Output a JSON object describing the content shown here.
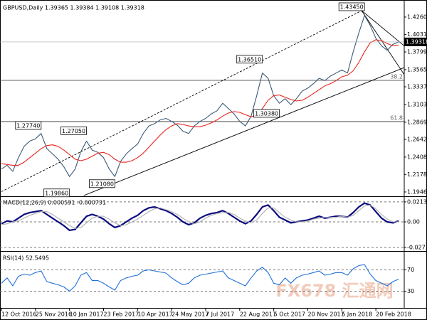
{
  "chart_data": [
    {
      "type": "line",
      "title": "GBPUSD,Daily  1.39365 1.39384 1.39108 1.39318",
      "ylim": [
        1.1899,
        1.4439
      ],
      "yticks": [
        1.42605,
        {
          "value": 1.4031,
          "label": "1.40310"
        },
        {
          "value": 1.3799,
          "label": "1.37990"
        },
        {
          "value": 1.3565,
          "label": "1.35650"
        },
        1.33375,
        1.31035,
        {
          "value": 1.2869,
          "label": "1.28690"
        },
        {
          "value": 1.2642,
          "label": "1.26420"
        },
        {
          "value": 1.2408,
          "label": "1.24080"
        },
        1.21785,
        1.19465
      ],
      "series": [
        {
          "color": "#3b5a78",
          "values": [
            1.225,
            1.23,
            1.222,
            1.24,
            1.255,
            1.262,
            1.265,
            1.272,
            1.252,
            1.245,
            1.238,
            1.228,
            1.215,
            1.225,
            1.248,
            1.262,
            1.25,
            1.247,
            1.24,
            1.225,
            1.215,
            1.235,
            1.245,
            1.252,
            1.258,
            1.272,
            1.282,
            1.285,
            1.29,
            1.292,
            1.288,
            1.283,
            1.275,
            1.272,
            1.282,
            1.288,
            1.292,
            1.298,
            1.302,
            1.312,
            1.305,
            1.298,
            1.288,
            1.282,
            1.295,
            1.322,
            1.352,
            1.345,
            1.322,
            1.312,
            1.318,
            1.31,
            1.318,
            1.328,
            1.332,
            1.338,
            1.345,
            1.342,
            1.348,
            1.352,
            1.356,
            1.352,
            1.38,
            1.405,
            1.428,
            1.415,
            1.398,
            1.388,
            1.382,
            1.39,
            1.393
          ]
        },
        {
          "color": "#e8241c",
          "values": [
            1.232,
            1.231,
            1.23,
            1.23,
            1.234,
            1.24,
            1.246,
            1.252,
            1.256,
            1.257,
            1.255,
            1.25,
            1.244,
            1.238,
            1.236,
            1.238,
            1.242,
            1.246,
            1.247,
            1.244,
            1.238,
            1.234,
            1.234,
            1.236,
            1.24,
            1.246,
            1.254,
            1.262,
            1.27,
            1.277,
            1.282,
            1.285,
            1.284,
            1.282,
            1.281,
            1.281,
            1.283,
            1.286,
            1.29,
            1.295,
            1.299,
            1.301,
            1.3,
            1.297,
            1.294,
            1.296,
            1.305,
            1.316,
            1.322,
            1.323,
            1.32,
            1.317,
            1.315,
            1.316,
            1.32,
            1.325,
            1.33,
            1.335,
            1.338,
            1.342,
            1.347,
            1.349,
            1.355,
            1.366,
            1.38,
            1.392,
            1.396,
            1.395,
            1.391,
            1.388,
            1.389
          ]
        }
      ],
      "trend_lines": [
        {
          "from": [
            0,
            1.1951
          ],
          "to": [
            63.5,
            1.4345
          ],
          "style": "dashed"
        },
        {
          "from": [
            14.5,
            1.1899
          ],
          "to": [
            71,
            1.3592
          ],
          "style": "solid"
        },
        {
          "from": [
            63.5,
            1.4345
          ],
          "to": [
            71,
            1.388
          ],
          "style": "solid"
        },
        {
          "from": [
            63.5,
            1.4345
          ],
          "to": [
            71,
            1.35
          ],
          "style": "solid"
        }
      ],
      "levels": [
        {
          "value": 1.3423,
          "label": "38.2"
        },
        {
          "value": 1.2878,
          "label": "61.8"
        }
      ],
      "annotations": [
        {
          "value": 1.2774,
          "label": "1.27740",
          "at": 7
        },
        {
          "value": 1.2705,
          "label": "1.27050",
          "at": 15
        },
        {
          "value": 1.1986,
          "label": "1.19860",
          "at": 12
        },
        {
          "value": 1.2108,
          "label": "1.21080",
          "at": 20
        },
        {
          "value": 1.3651,
          "label": "1.36510",
          "at": 46
        },
        {
          "value": 1.3038,
          "label": "1.30380",
          "at": 49
        },
        {
          "value": 1.4345,
          "label": "1.43450",
          "at": 64
        }
      ],
      "last_price": 1.39318,
      "watermark": "FX678 汇通网"
    },
    {
      "type": "line",
      "title": "MACD(12,26,9) 0.000591 -0.000731",
      "ylim": [
        -0.0296,
        0.0251
      ],
      "yticks": [
        0.021384,
        {
          "value": 0,
          "label": "0.00"
        },
        -0.027353
      ],
      "grid": "dashed",
      "series": [
        {
          "color": "#0a0a80",
          "style": "thick",
          "values": [
            -0.002,
            0.001,
            0.0,
            0.004,
            0.008,
            0.01,
            0.011,
            0.012,
            0.008,
            0.004,
            0.0,
            -0.004,
            -0.009,
            -0.008,
            -0.001,
            0.006,
            0.008,
            0.006,
            0.003,
            -0.002,
            -0.006,
            -0.004,
            0.0,
            0.004,
            0.007,
            0.012,
            0.015,
            0.016,
            0.014,
            0.012,
            0.009,
            0.005,
            0.0,
            -0.003,
            -0.001,
            0.004,
            0.007,
            0.009,
            0.01,
            0.012,
            0.009,
            0.005,
            0.001,
            -0.002,
            0.001,
            0.008,
            0.016,
            0.018,
            0.012,
            0.005,
            0.002,
            -0.001,
            0.0,
            0.001,
            0.002,
            0.004,
            0.006,
            0.004,
            0.005,
            0.006,
            0.006,
            0.005,
            0.01,
            0.016,
            0.02,
            0.018,
            0.011,
            0.004,
            0.0,
            -0.001,
            0.001
          ]
        },
        {
          "color": "#b0b0b0",
          "values": [
            -0.003,
            -0.002,
            0.0,
            0.001,
            0.004,
            0.007,
            0.009,
            0.011,
            0.011,
            0.008,
            0.004,
            0.0,
            -0.004,
            -0.007,
            -0.006,
            -0.001,
            0.004,
            0.006,
            0.006,
            0.003,
            -0.001,
            -0.004,
            -0.003,
            0.0,
            0.003,
            0.007,
            0.011,
            0.014,
            0.015,
            0.013,
            0.011,
            0.008,
            0.004,
            0.0,
            -0.002,
            0.0,
            0.004,
            0.007,
            0.009,
            0.01,
            0.01,
            0.008,
            0.004,
            0.001,
            -0.001,
            0.002,
            0.009,
            0.015,
            0.015,
            0.01,
            0.005,
            0.002,
            0.0,
            0.0,
            0.001,
            0.003,
            0.004,
            0.005,
            0.005,
            0.005,
            0.006,
            0.005,
            0.007,
            0.012,
            0.017,
            0.018,
            0.014,
            0.008,
            0.003,
            0.0,
            0.0
          ]
        }
      ]
    },
    {
      "type": "line",
      "title": "RSI(14) 52.5495",
      "ylim": [
        0,
        100
      ],
      "yticks": [
        70,
        30
      ],
      "grid": "dashed",
      "categories": [
        "12 Oct 2016",
        null,
        null,
        null,
        null,
        null,
        "25 Nov 2016",
        null,
        null,
        null,
        null,
        null,
        "10 Jan 2017",
        null,
        null,
        null,
        null,
        null,
        "23 Feb 2017",
        null,
        null,
        null,
        null,
        null,
        "10 Apr 2017",
        null,
        null,
        null,
        null,
        null,
        "24 May 2017",
        null,
        null,
        null,
        null,
        null,
        "7 Jul 2017",
        null,
        null,
        null,
        null,
        null,
        "22 Aug 2017",
        null,
        null,
        null,
        null,
        null,
        "5 Oct 2017",
        null,
        null,
        null,
        null,
        null,
        "20 Nov 2017",
        null,
        null,
        null,
        null,
        null,
        "5 Jan 2018",
        null,
        null,
        null,
        null,
        null,
        "20 Feb 2018",
        null,
        null,
        null,
        null
      ],
      "series": [
        {
          "color": "#1e6fd9",
          "values": [
            45,
            55,
            40,
            58,
            62,
            60,
            65,
            68,
            48,
            45,
            42,
            38,
            30,
            40,
            60,
            65,
            50,
            50,
            45,
            38,
            32,
            50,
            55,
            58,
            60,
            68,
            70,
            68,
            66,
            64,
            55,
            48,
            42,
            45,
            55,
            60,
            62,
            64,
            66,
            68,
            55,
            50,
            45,
            40,
            55,
            68,
            75,
            65,
            45,
            42,
            55,
            45,
            55,
            60,
            62,
            65,
            68,
            60,
            62,
            65,
            65,
            60,
            72,
            78,
            80,
            62,
            50,
            45,
            40,
            48,
            52.5495
          ]
        }
      ]
    }
  ]
}
